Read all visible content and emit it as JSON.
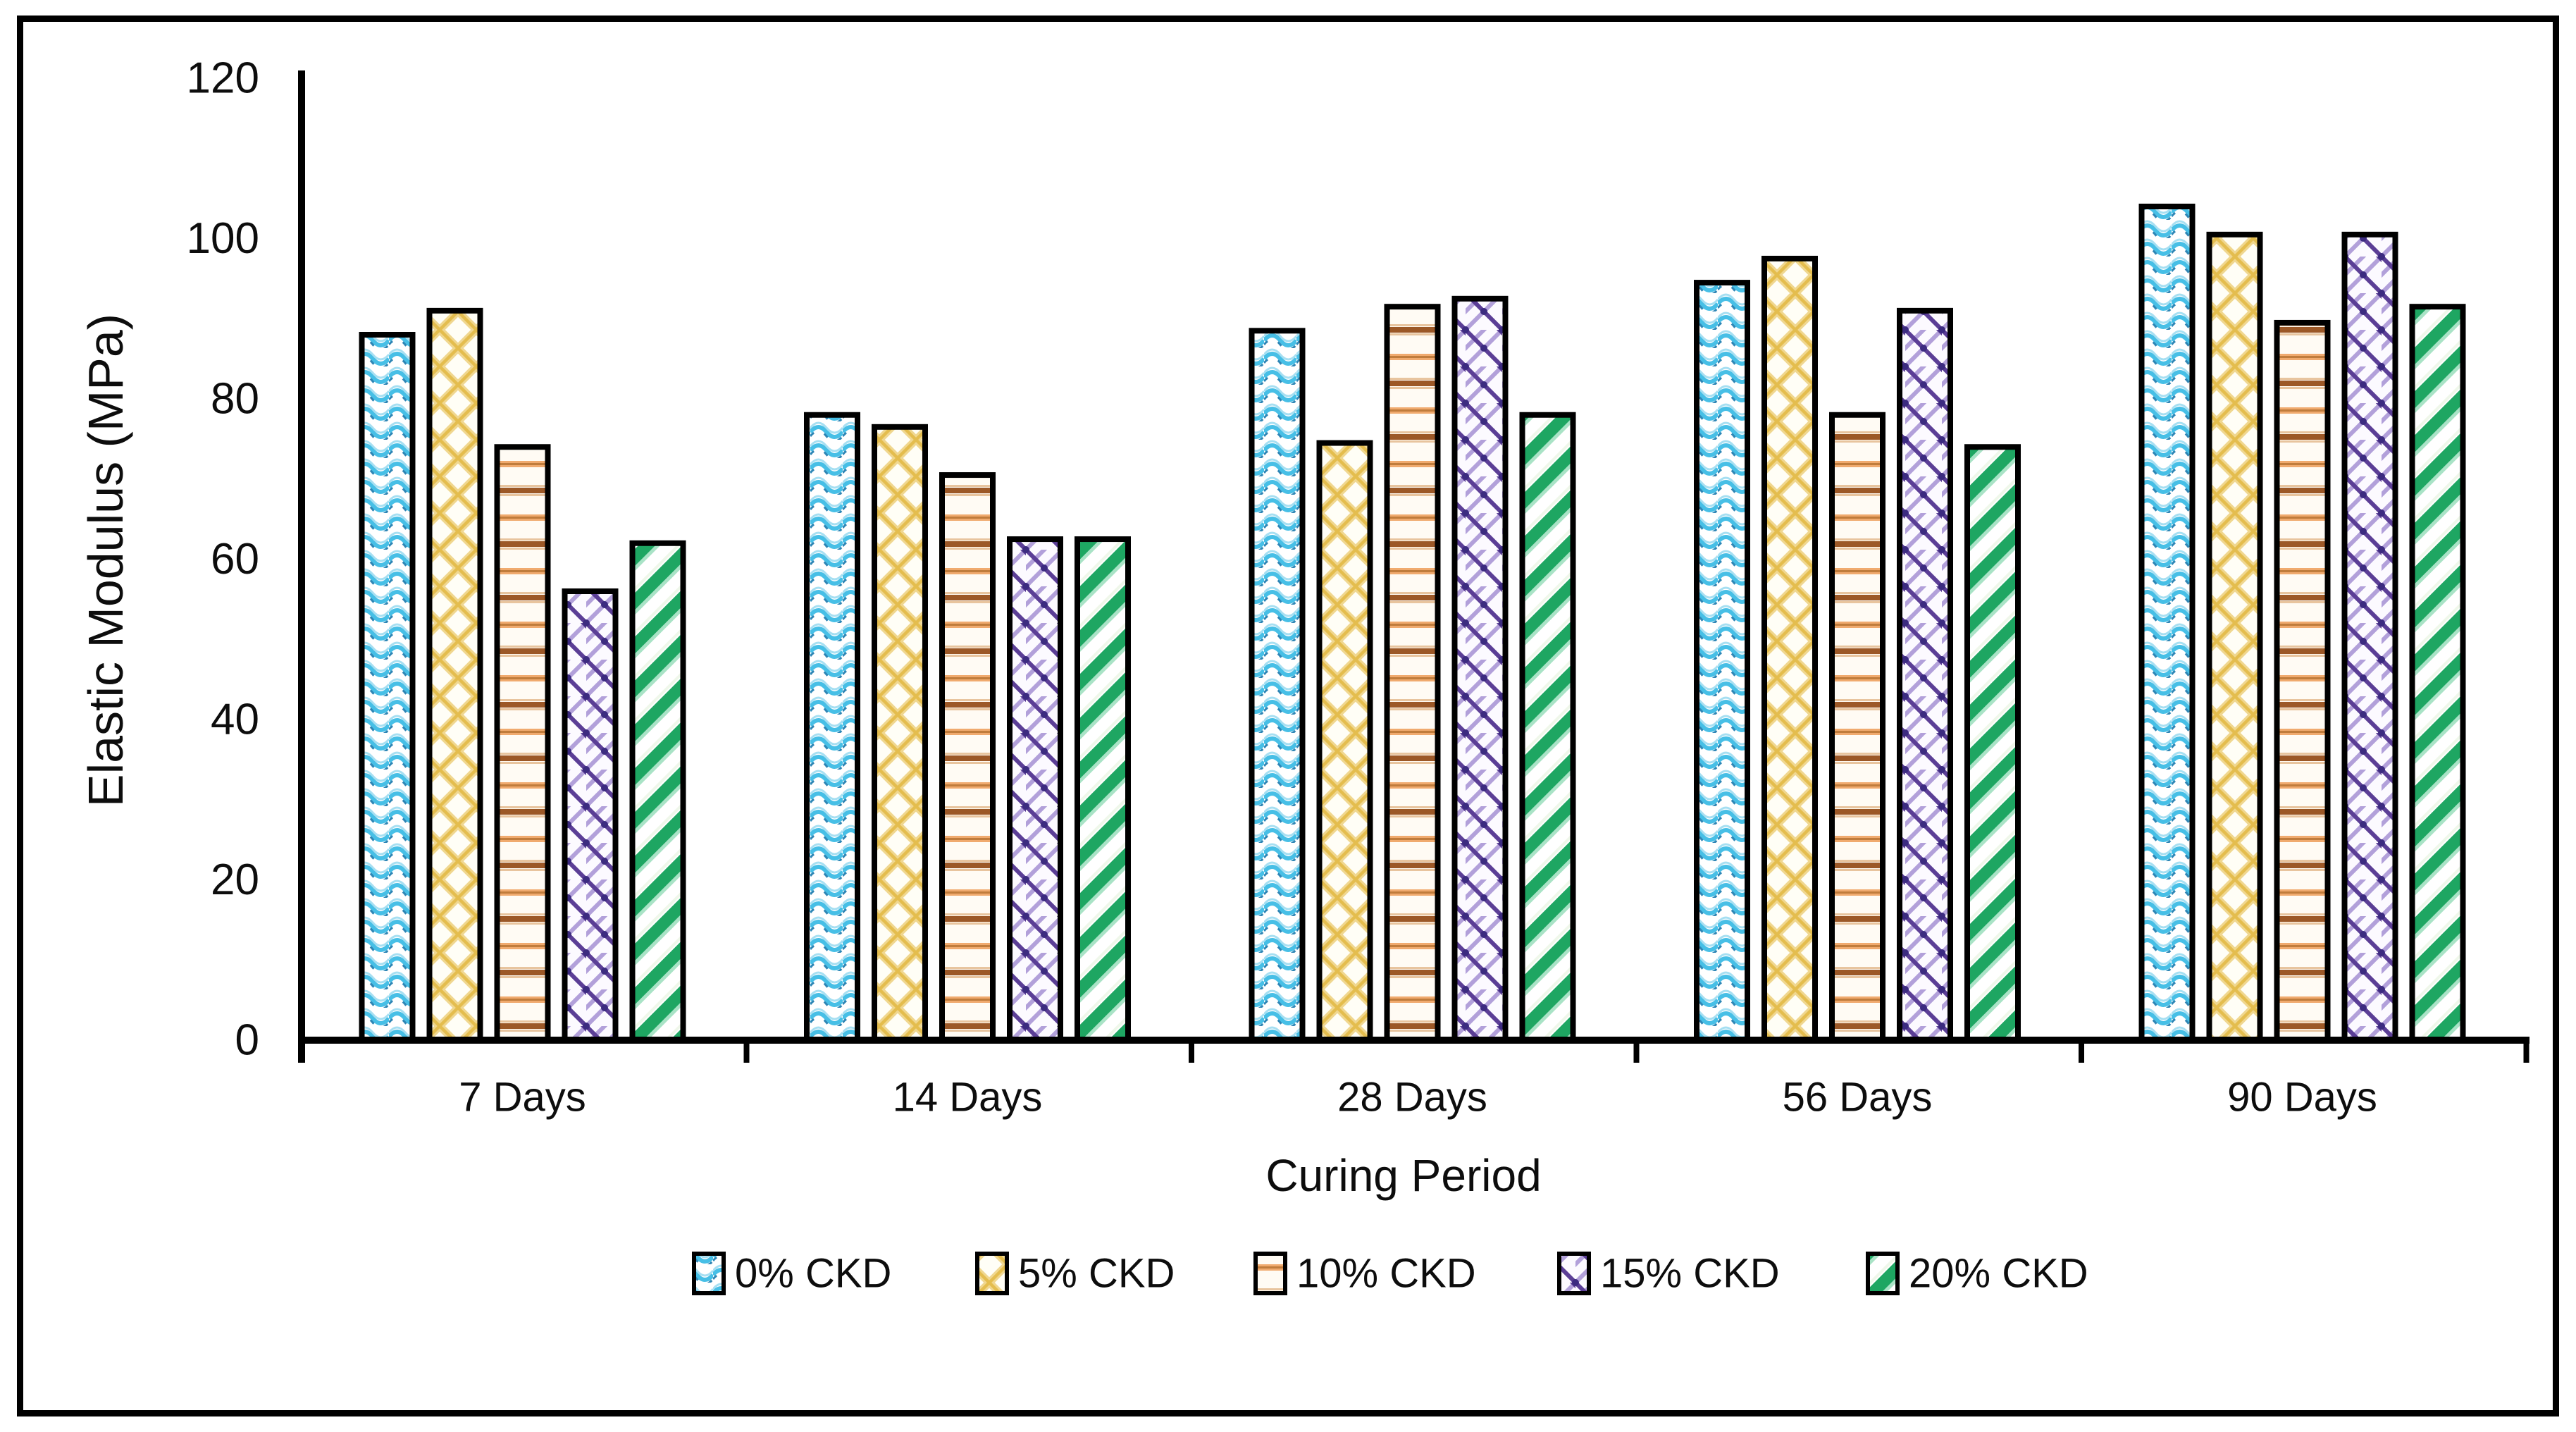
{
  "chart_data": {
    "type": "bar",
    "title": "",
    "xlabel": "Curing Period",
    "ylabel": "Elastic Modulus (MPa)",
    "categories": [
      "7 Days",
      "14 Days",
      "28 Days",
      "56 Days",
      "90 Days"
    ],
    "series": [
      {
        "name": "0% CKD",
        "pattern": "blue-waves",
        "color": "#47BFE6",
        "values": [
          88,
          78,
          88.5,
          94.5,
          104
        ]
      },
      {
        "name": "5% CKD",
        "pattern": "gold-diamonds",
        "color": "#E4BD4E",
        "values": [
          91,
          76.5,
          74.5,
          97.5,
          100.5
        ]
      },
      {
        "name": "10% CKD",
        "pattern": "orange-hlines",
        "color": "#9C5827",
        "values": [
          74,
          70.5,
          91.5,
          78,
          89.5
        ]
      },
      {
        "name": "15% CKD",
        "pattern": "purple-lattice",
        "color": "#6C4FA4",
        "values": [
          56,
          62.5,
          92.5,
          91,
          100.5
        ]
      },
      {
        "name": "20% CKD",
        "pattern": "green-stripes",
        "color": "#1EA662",
        "values": [
          62,
          62.5,
          78,
          74,
          91.5
        ]
      }
    ],
    "ylim": [
      0,
      120
    ],
    "yticks": [
      0,
      20,
      40,
      60,
      80,
      100,
      120
    ],
    "grid": false,
    "legend_position": "bottom"
  }
}
